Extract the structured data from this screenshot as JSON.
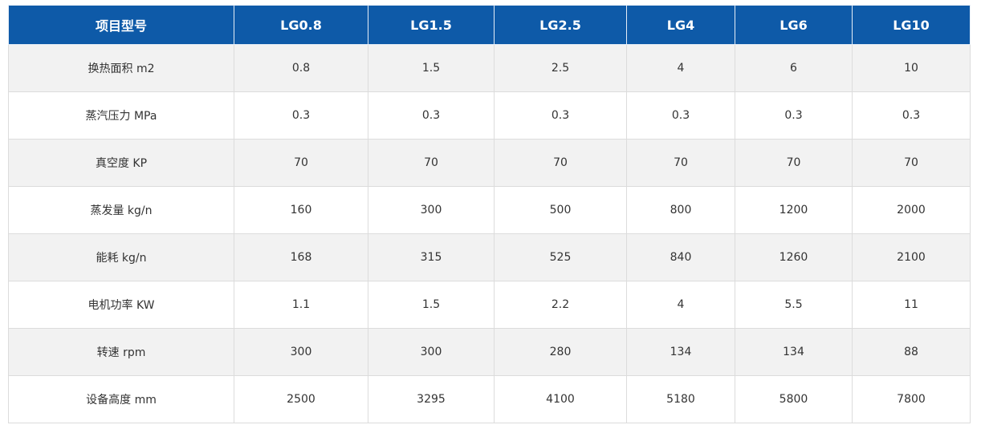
{
  "table": {
    "header": [
      "项目型号",
      "LG0.8",
      "LG1.5",
      "LG2.5",
      "LG4",
      "LG6",
      "LG10"
    ],
    "rows": [
      [
        "换热面积 m2",
        "0.8",
        "1.5",
        "2.5",
        "4",
        "6",
        "10"
      ],
      [
        "蒸汽压力 MPa",
        "0.3",
        "0.3",
        "0.3",
        "0.3",
        "0.3",
        "0.3"
      ],
      [
        "真空度 KP",
        "70",
        "70",
        "70",
        "70",
        "70",
        "70"
      ],
      [
        "蒸发量 kg/n",
        "160",
        "300",
        "500",
        "800",
        "1200",
        "2000"
      ],
      [
        "能耗 kg/n",
        "168",
        "315",
        "525",
        "840",
        "1260",
        "2100"
      ],
      [
        "电机功率 KW",
        "1.1",
        "1.5",
        "2.2",
        "4",
        "5.5",
        "11"
      ],
      [
        "转速 rpm",
        "300",
        "300",
        "280",
        "134",
        "134",
        "88"
      ],
      [
        "设备高度 mm",
        "2500",
        "3295",
        "4100",
        "5180",
        "5800",
        "7800"
      ]
    ]
  }
}
